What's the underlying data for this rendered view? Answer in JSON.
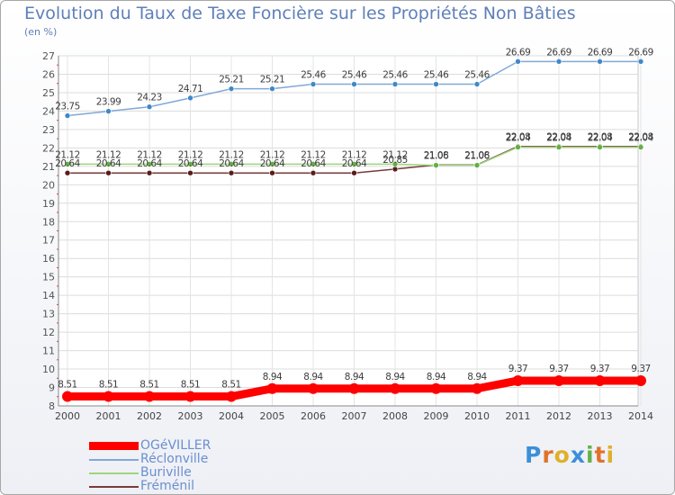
{
  "header": {
    "title": "Evolution du Taux de Taxe Foncière sur les Propriétés Non Bâties",
    "unit": "(en %)"
  },
  "logo": {
    "text": "Proxiti",
    "letters": [
      "P",
      "r",
      "o",
      "x",
      "i",
      "t",
      "i"
    ],
    "colors": [
      "#3c8fd8",
      "#e0722a",
      "#e0b02a",
      "#3c8fd8",
      "#64b24a",
      "#e0722a",
      "#e0b02a"
    ]
  },
  "chart_data": {
    "type": "line",
    "title": "Evolution du Taux de Taxe Foncière sur les Propriétés Non Bâties",
    "ylabel": "(en %)",
    "xlabel": "",
    "x": [
      "2000",
      "2001",
      "2002",
      "2003",
      "2004",
      "2005",
      "2006",
      "2007",
      "2008",
      "2009",
      "2010",
      "2011",
      "2012",
      "2013",
      "2014"
    ],
    "ylim": [
      8,
      27
    ],
    "yticks": [
      8,
      9,
      10,
      11,
      12,
      13,
      14,
      15,
      16,
      17,
      18,
      19,
      20,
      21,
      22,
      23,
      24,
      25,
      26,
      27
    ],
    "grid": true,
    "legend_position": "bottom-left",
    "series": [
      {
        "name": "OGéVILLER",
        "color": "#ff0000",
        "marker_color": "#ff0000",
        "bold": true,
        "labels": [
          "8.51",
          "8.51",
          "8.51",
          "8.51",
          "8.51",
          "8.94",
          "8.94",
          "8.94",
          "8.94",
          "8.94",
          "8.94",
          "9.37",
          "9.37",
          "9.37",
          "9.37"
        ],
        "values": [
          8.51,
          8.51,
          8.51,
          8.51,
          8.51,
          8.94,
          8.94,
          8.94,
          8.94,
          8.94,
          8.94,
          9.37,
          9.37,
          9.37,
          9.37
        ]
      },
      {
        "name": "Réclonville",
        "color": "#80a8d8",
        "marker_color": "#3f88c8",
        "bold": false,
        "labels": [
          "23.75",
          "23.99",
          "24.23",
          "24.71",
          "25.21",
          "25.21",
          "25.46",
          "25.46",
          "25.46",
          "25.46",
          "25.46",
          "26.69",
          "26.69",
          "26.69",
          "26.69"
        ],
        "values": [
          23.75,
          23.99,
          24.23,
          24.71,
          25.21,
          25.21,
          25.46,
          25.46,
          25.46,
          25.46,
          25.46,
          26.69,
          26.69,
          26.69,
          26.69
        ]
      },
      {
        "name": "Buriville",
        "color": "#9cd67e",
        "marker_color": "#62b040",
        "bold": false,
        "labels": [
          "21.12",
          "21.12",
          "21.12",
          "21.12",
          "21.12",
          "21.12",
          "21.12",
          "21.12",
          "21.12",
          "21.06",
          "21.06",
          "22.04",
          "22.04",
          "22.04",
          "22.04"
        ],
        "values": [
          21.12,
          21.12,
          21.12,
          21.12,
          21.12,
          21.12,
          21.12,
          21.12,
          21.12,
          21.06,
          21.06,
          22.04,
          22.04,
          22.04,
          22.04
        ]
      },
      {
        "name": "Fréménil",
        "color": "#7a3a3a",
        "marker_color": "#5a1c1c",
        "bold": false,
        "labels": [
          "20.64",
          "20.64",
          "20.64",
          "20.64",
          "20.64",
          "20.64",
          "20.64",
          "20.64",
          "20.85",
          "21.08",
          "21.08",
          "22.08",
          "22.08",
          "22.08",
          "22.08"
        ],
        "values": [
          20.64,
          20.64,
          20.64,
          20.64,
          20.64,
          20.64,
          20.64,
          20.64,
          20.85,
          21.08,
          21.08,
          22.08,
          22.08,
          22.08,
          22.08
        ]
      }
    ]
  }
}
